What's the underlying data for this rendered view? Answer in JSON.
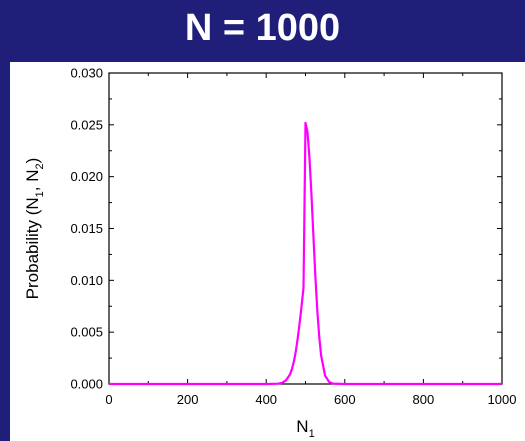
{
  "header": {
    "title": "N = 1000"
  },
  "chart_data": {
    "type": "line",
    "title": "",
    "xlabel": "N",
    "xlabel_sub": "1",
    "ylabel_main": "Probability (N",
    "ylabel_sub1": "1",
    "ylabel_mid": ", N",
    "ylabel_sub2": "2",
    "ylabel_end": ")",
    "xlim": [
      0,
      1000
    ],
    "ylim": [
      0,
      0.03
    ],
    "xticks": [
      0,
      200,
      400,
      600,
      800,
      1000
    ],
    "yticks": [
      0.0,
      0.005,
      0.01,
      0.015,
      0.02,
      0.025,
      0.03
    ],
    "xtick_labels": [
      "0",
      "200",
      "400",
      "600",
      "800",
      "1000"
    ],
    "ytick_labels": [
      "0.000",
      "0.005",
      "0.010",
      "0.015",
      "0.020",
      "0.025",
      "0.030"
    ],
    "grid": false,
    "line_color": "#ff00ff",
    "series": [
      {
        "x": [
          0,
          400,
          430,
          440,
          450,
          460,
          465,
          470,
          475,
          480,
          485,
          490,
          495,
          500,
          505,
          510,
          515,
          520,
          525,
          530,
          535,
          540,
          550,
          560,
          570,
          600,
          1000
        ],
        "values": [
          0,
          0,
          3e-05,
          0.00011,
          0.00034,
          0.00089,
          0.00137,
          0.00209,
          0.00308,
          0.00434,
          0.00585,
          0.00754,
          0.00927,
          0.0252,
          0.0243,
          0.0219,
          0.0184,
          0.0143,
          0.0105,
          0.0071,
          0.0045,
          0.0027,
          0.0008,
          0.0002,
          4e-05,
          0,
          0
        ]
      }
    ]
  }
}
